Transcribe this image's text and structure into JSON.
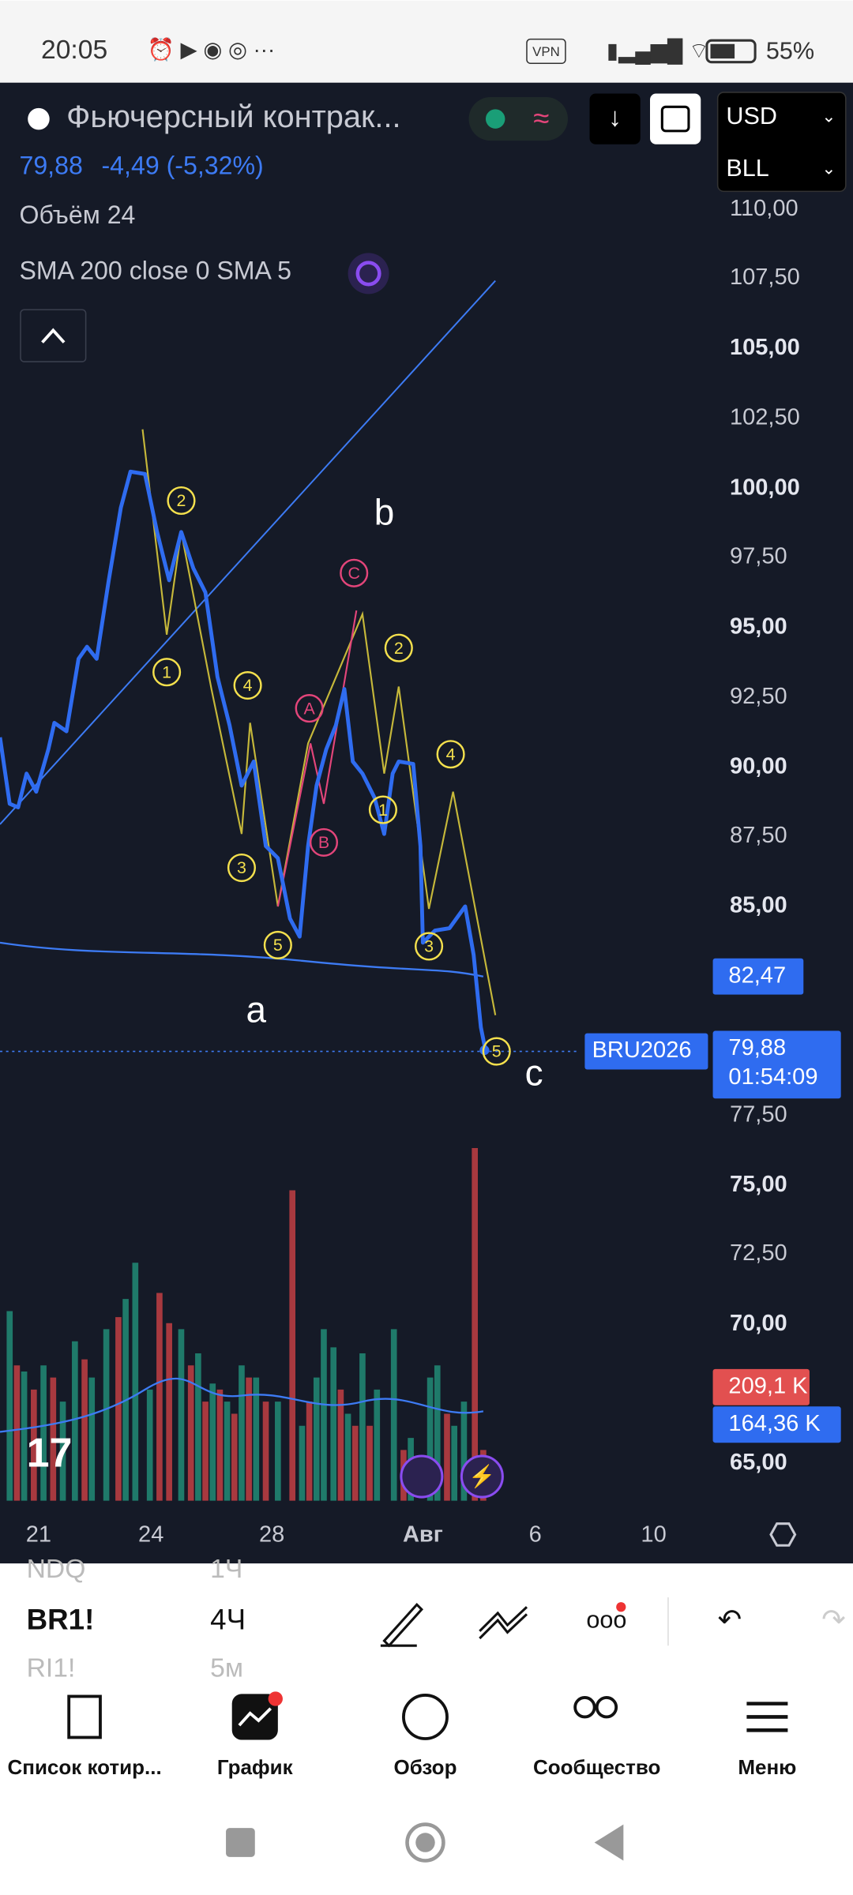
{
  "status": {
    "time": "20:05",
    "battery": "55%",
    "vpn": "VPN"
  },
  "header": {
    "symbol": "Фьючерсный контрак...",
    "currency": "USD",
    "unit": "BLL"
  },
  "quote": {
    "price": "79,88",
    "change": "-4,49 (-5,32%)"
  },
  "indicators": {
    "volume": "Объём 24",
    "sma": "SMA 200 close 0 SMA 5"
  },
  "price_axis": [
    "110,00",
    "107,50",
    "105,00",
    "102,50",
    "100,00",
    "97,50",
    "95,00",
    "92,50",
    "90,00",
    "87,50",
    "85,00",
    "77,50",
    "75,00",
    "72,50",
    "70,00",
    "65,00"
  ],
  "tags": {
    "sma_price": "82,47",
    "ticker": "BRU2026",
    "last_price": "79,88",
    "countdown": "01:54:09",
    "volume_red": "209,1 K",
    "volume_blue": "164,36 K"
  },
  "waves": {
    "impulse": [
      "2",
      "1",
      "4",
      "3",
      "5",
      "2",
      "1",
      "4",
      "3",
      "5"
    ],
    "correction": [
      "C",
      "A",
      "B"
    ],
    "letters": [
      "b",
      "a",
      "c"
    ]
  },
  "time_axis": [
    "21",
    "24",
    "28",
    "Авг",
    "6",
    "10"
  ],
  "symbols": [
    "NDQ",
    "BR1!",
    "RI1!"
  ],
  "intervals": [
    "1Ч",
    "4Ч",
    "5м"
  ],
  "nav": [
    "Список котир...",
    "График",
    "Обзор",
    "Сообщество",
    "Меню"
  ]
}
